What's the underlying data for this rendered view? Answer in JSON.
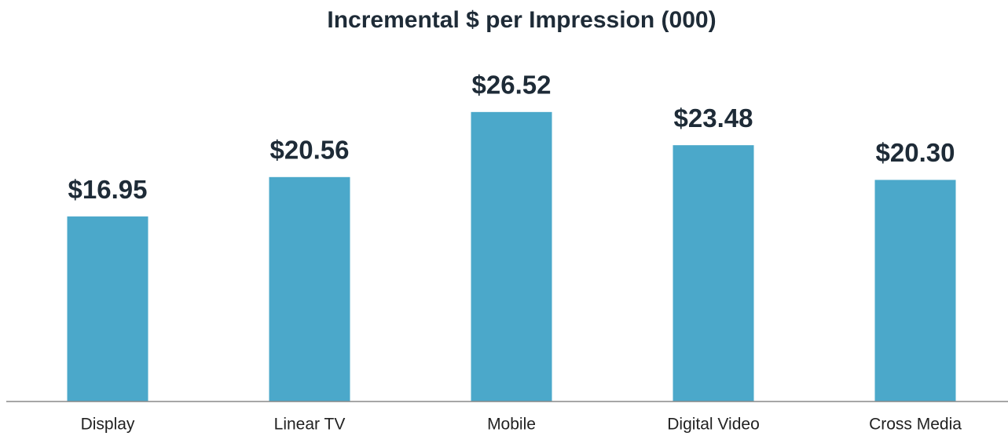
{
  "chart_data": {
    "type": "bar",
    "title": "Incremental $ per Impression (000)",
    "categories": [
      "Display",
      "Linear TV",
      "Mobile",
      "Digital Video",
      "Cross Media"
    ],
    "values": [
      16.95,
      20.56,
      26.52,
      23.48,
      20.3
    ],
    "value_labels": [
      "$16.95",
      "$20.56",
      "$26.52",
      "$23.48",
      "$20.30"
    ],
    "color": "#4ba8ca",
    "ylim": [
      0,
      30
    ]
  }
}
